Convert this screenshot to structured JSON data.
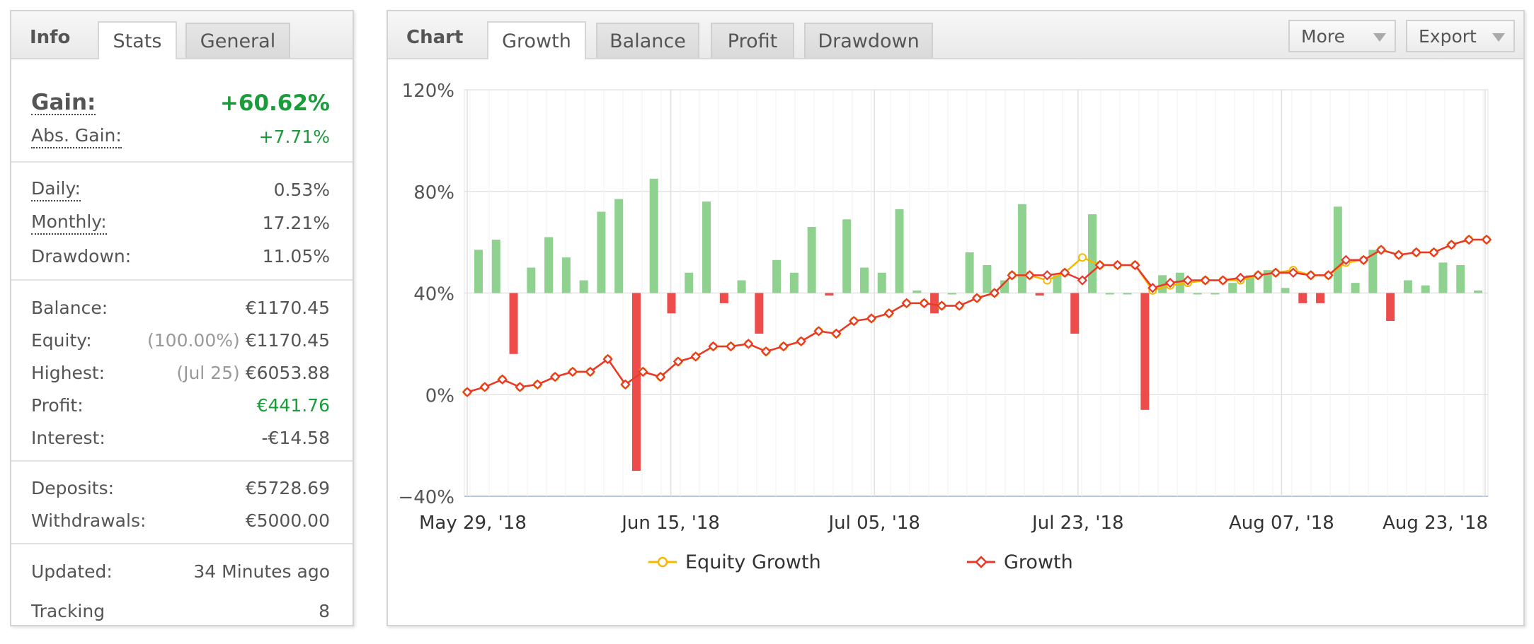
{
  "info": {
    "title": "Info",
    "tabs": [
      {
        "label": "Stats",
        "active": true
      },
      {
        "label": "General",
        "active": false
      }
    ],
    "gain": {
      "label": "Gain:",
      "value": "+60.62%"
    },
    "abs_gain": {
      "label": "Abs. Gain:",
      "value": "+7.71%"
    },
    "daily": {
      "label": "Daily:",
      "value": "0.53%"
    },
    "monthly": {
      "label": "Monthly:",
      "value": "17.21%"
    },
    "drawdown": {
      "label": "Drawdown:",
      "value": "11.05%"
    },
    "balance": {
      "label": "Balance:",
      "value": "€1170.45"
    },
    "equity": {
      "label": "Equity:",
      "note": "(100.00%)",
      "value": "€1170.45"
    },
    "highest": {
      "label": "Highest:",
      "note": "(Jul 25)",
      "value": "€6053.88"
    },
    "profit": {
      "label": "Profit:",
      "value": "€441.76"
    },
    "interest": {
      "label": "Interest:",
      "value": "-€14.58"
    },
    "deposits": {
      "label": "Deposits:",
      "value": "€5728.69"
    },
    "withdrawals": {
      "label": "Withdrawals:",
      "value": "€5000.00"
    },
    "updated": {
      "label": "Updated:",
      "value": "34 Minutes ago"
    },
    "tracking": {
      "label": "Tracking",
      "value": "8"
    }
  },
  "chart_panel": {
    "title": "Chart",
    "tabs": [
      {
        "label": "Growth",
        "active": true
      },
      {
        "label": "Balance",
        "active": false
      },
      {
        "label": "Profit",
        "active": false
      },
      {
        "label": "Drawdown",
        "active": false
      }
    ],
    "more_label": "More",
    "export_label": "Export"
  },
  "colors": {
    "positive_bar": "#8fd18f",
    "negative_bar": "#ee4b4b",
    "growth_line": "#e8382b",
    "equity_line": "#f5b800",
    "gain_green": "#1a9c3a"
  },
  "chart_data": {
    "type": "bar+line",
    "y_tick_labels": [
      "120%",
      "80%",
      "40%",
      "0%",
      "−40%"
    ],
    "y_ticks": [
      120,
      80,
      40,
      0,
      -40
    ],
    "ylim": [
      -40,
      120
    ],
    "x_tick_labels": [
      "May 29, '18",
      "Jun 15, '18",
      "Jul 05, '18",
      "Jul 23, '18",
      "Aug 07, '18",
      "Aug 23, '18"
    ],
    "bar_baseline": 40,
    "grid": true,
    "legend_position": "bottom",
    "series": [
      {
        "name": "Equity Growth",
        "values": [
          1,
          3,
          6,
          3,
          4,
          7,
          9,
          9,
          14,
          4,
          9,
          7,
          13,
          15,
          19,
          19,
          20,
          17,
          19,
          21,
          25,
          24,
          29,
          30,
          32,
          36,
          36,
          35,
          35,
          38,
          40,
          47,
          47,
          45,
          48,
          54,
          51,
          51,
          51,
          41,
          43,
          44,
          45,
          45,
          45,
          47,
          48,
          49,
          47,
          47,
          52,
          53,
          57,
          55,
          56,
          56,
          59,
          61,
          61
        ]
      },
      {
        "name": "Growth",
        "values": [
          1,
          3,
          6,
          3,
          4,
          7,
          9,
          9,
          14,
          4,
          9,
          7,
          13,
          15,
          19,
          19,
          20,
          17,
          19,
          21,
          25,
          24,
          29,
          30,
          32,
          36,
          36,
          35,
          35,
          38,
          40,
          47,
          47,
          47,
          48,
          45,
          51,
          51,
          51,
          42,
          44,
          45,
          45,
          45,
          46,
          47,
          48,
          48,
          47,
          47,
          53,
          53,
          57,
          55,
          56,
          56,
          59,
          61,
          61
        ]
      }
    ],
    "bars": [
      57,
      61,
      16,
      50,
      62,
      54,
      45,
      72,
      77,
      -30,
      85,
      32,
      48,
      76,
      36,
      45,
      24,
      53,
      48,
      66,
      39,
      69,
      50,
      48,
      73,
      41,
      32,
      40,
      56,
      51,
      45,
      75,
      39,
      47,
      24,
      71,
      40,
      40,
      -6,
      47,
      48,
      40,
      40,
      44,
      47,
      49,
      42,
      36,
      36,
      74,
      44,
      57,
      29,
      45,
      43,
      52,
      51,
      41
    ]
  }
}
